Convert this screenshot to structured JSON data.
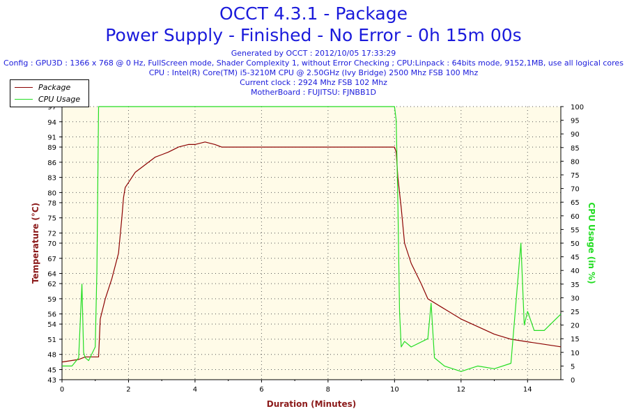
{
  "header": {
    "title_line1": "OCCT 4.3.1 - Package",
    "title_line2": "Power Supply - Finished - No Error - 0h 15m 00s",
    "generated": "Generated by OCCT : 2012/10/05 17:33:29",
    "config": "Config : GPU3D : 1366 x 768 @ 0 Hz, FullScreen mode, Shader Complexity 1, without Error Checking ; CPU:Linpack : 64bits mode, 9152,1MB, use all logical cores",
    "cpu": "CPU : Intel(R) Core(TM) i5-3210M CPU @ 2.50GHz (Ivy Bridge) 2500 Mhz FSB 100 Mhz",
    "clock": "Current clock : 2924 Mhz FSB 102 Mhz",
    "motherboard": "MotherBoard : FUJITSU: FJNBB1D"
  },
  "colors": {
    "title": "#1a1adb",
    "axis_label": "#8b1a1a",
    "package": "#8b0000",
    "cpu_usage": "#22dd22",
    "plot_bg": "#fffbe8"
  },
  "chart_data": {
    "type": "line",
    "xlabel": "Duration (Minutes)",
    "ylabel_left": "Temperature (°C)",
    "ylabel_right": "CPU Usage (in %)",
    "x_ticks": [
      0,
      2,
      4,
      6,
      8,
      10,
      12,
      14
    ],
    "xlim": [
      0,
      15
    ],
    "y_left_ticks": [
      43,
      45,
      48,
      51,
      54,
      56,
      59,
      62,
      64,
      67,
      70,
      72,
      75,
      78,
      80,
      83,
      86,
      89,
      91,
      94,
      97
    ],
    "y_left_lim": [
      43,
      97
    ],
    "y_right_ticks": [
      0,
      5,
      10,
      15,
      20,
      25,
      30,
      35,
      40,
      45,
      50,
      55,
      60,
      65,
      70,
      75,
      80,
      85,
      90,
      95,
      100
    ],
    "y_right_lim": [
      0,
      100
    ],
    "grid": true,
    "legend_position": "top-left",
    "series": [
      {
        "name": "Package",
        "axis": "left",
        "color": "#8b0000",
        "x": [
          0,
          0.5,
          0.7,
          0.9,
          1.0,
          1.1,
          1.15,
          1.3,
          1.5,
          1.7,
          1.8,
          1.85,
          1.9,
          2.0,
          2.2,
          2.4,
          2.6,
          2.8,
          3.0,
          3.2,
          3.5,
          3.8,
          4.0,
          4.3,
          4.6,
          4.8,
          5.0,
          5.5,
          6.0,
          6.5,
          7.0,
          7.5,
          8.0,
          8.5,
          9.0,
          9.5,
          10.0,
          10.05,
          10.1,
          10.2,
          10.3,
          10.5,
          10.8,
          11.0,
          11.5,
          12.0,
          12.5,
          13.0,
          13.5,
          14.0,
          14.5,
          15.0
        ],
        "y": [
          46.5,
          47,
          47.5,
          47.5,
          47.5,
          47.5,
          55,
          59,
          63,
          68,
          75,
          79,
          81,
          82,
          84,
          85,
          86,
          87,
          87.5,
          88,
          89,
          89.5,
          89.5,
          90,
          89.5,
          89,
          89,
          89,
          89,
          89,
          89,
          89,
          89,
          89,
          89,
          89,
          89,
          88,
          83,
          77,
          70,
          66,
          62,
          59,
          57,
          55,
          53.5,
          52,
          51,
          50.5,
          50,
          49.5
        ]
      },
      {
        "name": "CPU Usage",
        "axis": "right",
        "color": "#22dd22",
        "x": [
          0,
          0.3,
          0.5,
          0.6,
          0.65,
          0.7,
          0.8,
          1.0,
          1.05,
          1.1,
          1.15,
          1.2,
          2,
          4,
          6,
          8,
          10,
          10.05,
          10.1,
          10.15,
          10.2,
          10.3,
          10.5,
          11.0,
          11.1,
          11.2,
          11.5,
          12.0,
          12.5,
          13.0,
          13.5,
          13.8,
          13.9,
          14.0,
          14.2,
          14.5,
          15.0
        ],
        "y": [
          5,
          5,
          8,
          35,
          10,
          8,
          7,
          12,
          40,
          100,
          100,
          100,
          100,
          100,
          100,
          100,
          100,
          95,
          65,
          25,
          12,
          14,
          12,
          15,
          28,
          8,
          5,
          3,
          5,
          4,
          6,
          50,
          20,
          25,
          18,
          18,
          24
        ]
      }
    ]
  }
}
